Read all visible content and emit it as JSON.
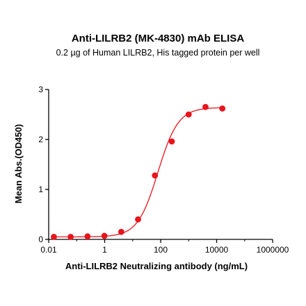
{
  "chart_data": {
    "type": "scatter",
    "title": "Anti-LILRB2 (MK-4830) mAb ELISA",
    "subtitle": "0.2 µg of Human LILRB2, His tagged protein per well",
    "xlabel": "Anti-LILRB2 Neutralizing antibody (ng/mL)",
    "ylabel": "Mean Abs.(OD450)",
    "x_scale": "log",
    "xlim": [
      0.01,
      1000000
    ],
    "ylim": [
      0,
      3
    ],
    "x_ticks": [
      {
        "value": 0.01,
        "label": "0.01"
      },
      {
        "value": 1,
        "label": "1"
      },
      {
        "value": 100,
        "label": "100"
      },
      {
        "value": 10000,
        "label": "10000"
      },
      {
        "value": 1000000,
        "label": "1000000"
      }
    ],
    "y_ticks": [
      {
        "value": 0,
        "label": "0"
      },
      {
        "value": 1,
        "label": "1"
      },
      {
        "value": 2,
        "label": "2"
      },
      {
        "value": 3,
        "label": "3"
      }
    ],
    "series": [
      {
        "color": "#e8141c",
        "points": [
          {
            "x": 0.0153,
            "y": 0.05
          },
          {
            "x": 0.061,
            "y": 0.05
          },
          {
            "x": 0.244,
            "y": 0.06
          },
          {
            "x": 0.977,
            "y": 0.07
          },
          {
            "x": 3.91,
            "y": 0.15
          },
          {
            "x": 15.6,
            "y": 0.4
          },
          {
            "x": 62.5,
            "y": 1.28
          },
          {
            "x": 250,
            "y": 1.96
          },
          {
            "x": 1000,
            "y": 2.5
          },
          {
            "x": 4000,
            "y": 2.65
          },
          {
            "x": 16000,
            "y": 2.62
          }
        ],
        "fit_curve": {
          "model": "4PL",
          "bottom": 0.05,
          "top": 2.64,
          "ec50": 80,
          "hill": 1.2
        }
      }
    ],
    "grid": false,
    "legend": "none"
  }
}
